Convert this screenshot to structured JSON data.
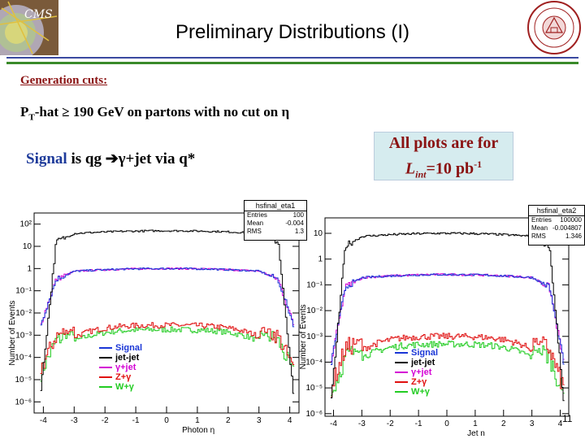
{
  "header": {
    "title": "Preliminary Distributions (I)"
  },
  "slide": {
    "generation_cuts_label": "Generation cuts:",
    "pt_cut_prefix": "P",
    "pt_cut_sub": "T",
    "pt_cut_rest": "-hat ≥ 190 GeV on partons with no cut on η",
    "signal_word": "Signal",
    "signal_rest": " is qg ➔γ+jet via q*",
    "lumi_line1": "All plots are for",
    "lumi_L": "L",
    "lumi_sub": "int",
    "lumi_eq": "=10 pb",
    "lumi_sup": "-1",
    "page_number": "11"
  },
  "colors": {
    "title_rule_blue": "#3a4aa0",
    "title_rule_green": "#3a8a2a",
    "cuts_red": "#8a1212",
    "signal_blue": "#1d3a9a",
    "lumi_bg": "#d6ecef",
    "series_signal": "#1a36d6",
    "series_jetjet": "#000000",
    "series_gammajet": "#d400d4",
    "series_zgamma": "#e01010",
    "series_wgamma": "#22cc22"
  },
  "chart_data": [
    {
      "type": "line",
      "stats_title": "hsfinal_eta1",
      "stats": [
        {
          "label": "Entries",
          "value": "100"
        },
        {
          "label": "Mean",
          "value": "-0.004"
        },
        {
          "label": "RMS",
          "value": "1.3"
        }
      ],
      "xlabel": "Photon η",
      "ylabel": "Number of Events",
      "x_ticks": [
        "-4",
        "-3",
        "-2",
        "-1",
        "0",
        "1",
        "2",
        "3",
        "4"
      ],
      "y_ticks": [
        "10²",
        "10",
        "1",
        "10⁻¹",
        "10⁻²",
        "10⁻³",
        "10⁻⁴",
        "10⁻⁵",
        "10⁻⁶"
      ],
      "xlim": [
        -4.3,
        4.3
      ],
      "ylog_range": [
        -6.5,
        2.5
      ],
      "legend": [
        "Signal",
        "jet-jet",
        "γ+jet",
        "Z+γ",
        "W+γ"
      ],
      "series_shape": [
        {
          "name": "jet-jet",
          "plateau_log": 1.7,
          "edge_log": -5.5
        },
        {
          "name": "Signal",
          "plateau_log": 0.0,
          "edge_log": -2.5
        },
        {
          "name": "γ+jet",
          "plateau_log": 0.0,
          "edge_log": -2.5
        },
        {
          "name": "Z+γ",
          "plateau_log": -2.55,
          "edge_log": -4.5
        },
        {
          "name": "W+γ",
          "plateau_log": -2.75,
          "edge_log": -4.7
        }
      ]
    },
    {
      "type": "line",
      "stats_title": "hsfinal_eta2",
      "stats": [
        {
          "label": "Entries",
          "value": "100000"
        },
        {
          "label": "Mean",
          "value": "-0.004807"
        },
        {
          "label": "RMS",
          "value": "1.346"
        }
      ],
      "xlabel": "Jet η",
      "ylabel": "Number of Events",
      "x_ticks": [
        "-4",
        "-3",
        "-2",
        "-1",
        "0",
        "1",
        "2",
        "3",
        "4"
      ],
      "y_ticks": [
        "10",
        "1",
        "10⁻¹",
        "10⁻²",
        "10⁻³",
        "10⁻⁴",
        "10⁻⁵",
        "10⁻⁶"
      ],
      "xlim": [
        -4.3,
        4.3
      ],
      "ylog_range": [
        -6.1,
        1.6
      ],
      "legend": [
        "Signal",
        "jet-jet",
        "γ+jet",
        "Z+γ",
        "W+γ"
      ],
      "series_shape": [
        {
          "name": "jet-jet",
          "plateau_log": 1.0,
          "edge_log": -5.5
        },
        {
          "name": "Signal",
          "plateau_log": -0.6,
          "edge_log": -4.0
        },
        {
          "name": "γ+jet",
          "plateau_log": -0.6,
          "edge_log": -4.0
        },
        {
          "name": "Z+γ",
          "plateau_log": -3.0,
          "edge_log": -5.0
        },
        {
          "name": "W+γ",
          "plateau_log": -3.3,
          "edge_log": -5.3
        }
      ]
    }
  ]
}
